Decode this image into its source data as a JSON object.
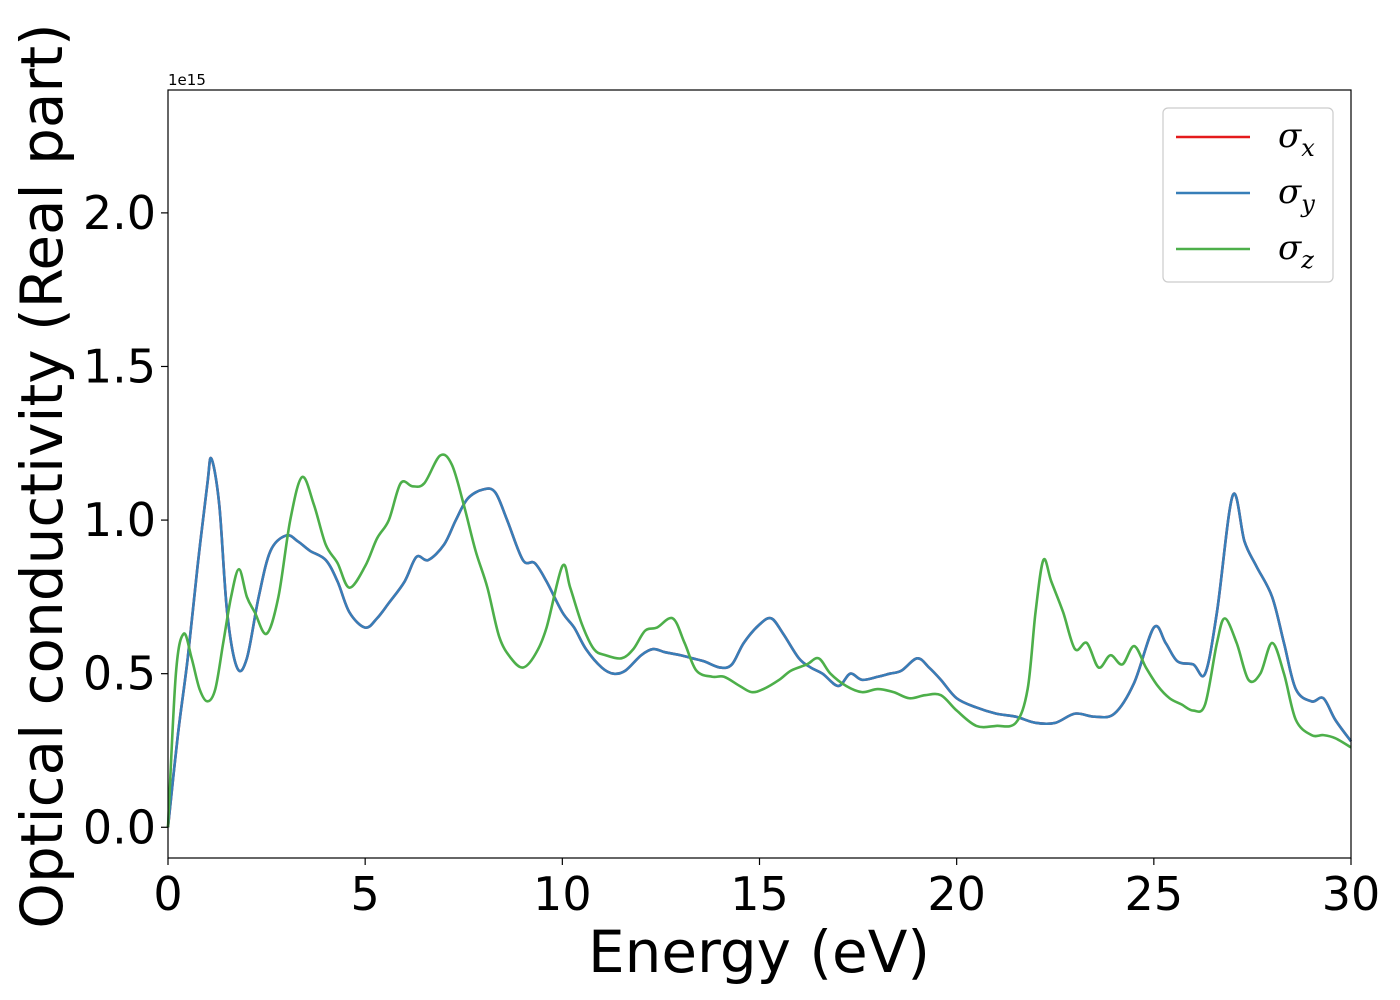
{
  "chart_data": {
    "type": "line",
    "xlabel": "Energy (eV)",
    "ylabel": "Optical conductivity (Real part)",
    "y_offset_label": "1e15",
    "xlim": [
      0,
      30
    ],
    "ylim": [
      -0.1,
      2.4
    ],
    "x_ticks": [
      0,
      5,
      10,
      15,
      20,
      25,
      30
    ],
    "x_tick_labels": [
      "0",
      "5",
      "10",
      "15",
      "20",
      "25",
      "30"
    ],
    "y_ticks": [
      0.0,
      0.5,
      1.0,
      1.5,
      2.0
    ],
    "y_tick_labels": [
      "0.0",
      "0.5",
      "1.0",
      "1.5",
      "2.0"
    ],
    "grid": false,
    "legend_position": "top-right",
    "series": [
      {
        "name": "x",
        "legend_symbol": "σ",
        "color": "#e41a1c",
        "x": [
          0,
          0.25,
          0.5,
          0.75,
          1.0,
          1.1,
          1.3,
          1.5,
          1.75,
          2.0,
          2.3,
          2.6,
          3.0,
          3.3,
          3.6,
          4.0,
          4.3,
          4.6,
          5.0,
          5.3,
          5.6,
          6.0,
          6.3,
          6.6,
          7.0,
          7.3,
          7.6,
          8.0,
          8.3,
          8.6,
          9.0,
          9.3,
          9.6,
          10.0,
          10.3,
          10.6,
          11.0,
          11.3,
          11.6,
          12.0,
          12.3,
          12.6,
          13.0,
          13.3,
          13.6,
          14.0,
          14.3,
          14.6,
          15.0,
          15.3,
          15.6,
          16.0,
          16.3,
          16.6,
          17.0,
          17.3,
          17.6,
          18.0,
          18.3,
          18.6,
          19.0,
          19.3,
          19.6,
          20.0,
          20.5,
          21.0,
          21.5,
          22.0,
          22.5,
          23.0,
          23.5,
          24.0,
          24.5,
          25.0,
          25.3,
          25.6,
          26.0,
          26.3,
          26.6,
          27.0,
          27.3,
          27.6,
          28.0,
          28.3,
          28.6,
          29.0,
          29.3,
          29.6,
          30.0
        ],
        "values": [
          0.0,
          0.3,
          0.55,
          0.85,
          1.12,
          1.2,
          1.05,
          0.7,
          0.52,
          0.55,
          0.75,
          0.9,
          0.95,
          0.93,
          0.9,
          0.87,
          0.8,
          0.7,
          0.65,
          0.68,
          0.73,
          0.8,
          0.88,
          0.87,
          0.92,
          1.0,
          1.07,
          1.1,
          1.09,
          1.0,
          0.87,
          0.86,
          0.8,
          0.7,
          0.65,
          0.58,
          0.52,
          0.5,
          0.51,
          0.56,
          0.58,
          0.57,
          0.56,
          0.55,
          0.54,
          0.52,
          0.53,
          0.6,
          0.66,
          0.68,
          0.63,
          0.55,
          0.52,
          0.5,
          0.46,
          0.5,
          0.48,
          0.49,
          0.5,
          0.51,
          0.55,
          0.52,
          0.48,
          0.42,
          0.39,
          0.37,
          0.36,
          0.34,
          0.34,
          0.37,
          0.36,
          0.37,
          0.47,
          0.65,
          0.6,
          0.54,
          0.53,
          0.5,
          0.7,
          1.08,
          0.93,
          0.85,
          0.75,
          0.6,
          0.45,
          0.41,
          0.42,
          0.35,
          0.28
        ]
      },
      {
        "name": "y",
        "legend_symbol": "σ",
        "color": "#377eb8",
        "x": [
          0,
          0.25,
          0.5,
          0.75,
          1.0,
          1.1,
          1.3,
          1.5,
          1.75,
          2.0,
          2.3,
          2.6,
          3.0,
          3.3,
          3.6,
          4.0,
          4.3,
          4.6,
          5.0,
          5.3,
          5.6,
          6.0,
          6.3,
          6.6,
          7.0,
          7.3,
          7.6,
          8.0,
          8.3,
          8.6,
          9.0,
          9.3,
          9.6,
          10.0,
          10.3,
          10.6,
          11.0,
          11.3,
          11.6,
          12.0,
          12.3,
          12.6,
          13.0,
          13.3,
          13.6,
          14.0,
          14.3,
          14.6,
          15.0,
          15.3,
          15.6,
          16.0,
          16.3,
          16.6,
          17.0,
          17.3,
          17.6,
          18.0,
          18.3,
          18.6,
          19.0,
          19.3,
          19.6,
          20.0,
          20.5,
          21.0,
          21.5,
          22.0,
          22.5,
          23.0,
          23.5,
          24.0,
          24.5,
          25.0,
          25.3,
          25.6,
          26.0,
          26.3,
          26.6,
          27.0,
          27.3,
          27.6,
          28.0,
          28.3,
          28.6,
          29.0,
          29.3,
          29.6,
          30.0
        ],
        "values": [
          0.0,
          0.3,
          0.55,
          0.85,
          1.12,
          1.2,
          1.05,
          0.7,
          0.52,
          0.55,
          0.75,
          0.9,
          0.95,
          0.93,
          0.9,
          0.87,
          0.8,
          0.7,
          0.65,
          0.68,
          0.73,
          0.8,
          0.88,
          0.87,
          0.92,
          1.0,
          1.07,
          1.1,
          1.09,
          1.0,
          0.87,
          0.86,
          0.8,
          0.7,
          0.65,
          0.58,
          0.52,
          0.5,
          0.51,
          0.56,
          0.58,
          0.57,
          0.56,
          0.55,
          0.54,
          0.52,
          0.53,
          0.6,
          0.66,
          0.68,
          0.63,
          0.55,
          0.52,
          0.5,
          0.46,
          0.5,
          0.48,
          0.49,
          0.5,
          0.51,
          0.55,
          0.52,
          0.48,
          0.42,
          0.39,
          0.37,
          0.36,
          0.34,
          0.34,
          0.37,
          0.36,
          0.37,
          0.47,
          0.65,
          0.6,
          0.54,
          0.53,
          0.5,
          0.7,
          1.08,
          0.93,
          0.85,
          0.75,
          0.6,
          0.45,
          0.41,
          0.42,
          0.35,
          0.28
        ]
      },
      {
        "name": "z",
        "legend_symbol": "σ",
        "color": "#4daf4a",
        "x": [
          0,
          0.2,
          0.4,
          0.6,
          0.8,
          1.0,
          1.2,
          1.4,
          1.6,
          1.8,
          2.0,
          2.2,
          2.5,
          2.8,
          3.1,
          3.4,
          3.7,
          4.0,
          4.3,
          4.6,
          5.0,
          5.3,
          5.6,
          5.9,
          6.2,
          6.5,
          6.9,
          7.2,
          7.5,
          7.8,
          8.1,
          8.4,
          8.7,
          9.0,
          9.3,
          9.6,
          10.0,
          10.2,
          10.5,
          10.8,
          11.1,
          11.5,
          11.8,
          12.1,
          12.4,
          12.8,
          13.1,
          13.4,
          13.8,
          14.1,
          14.5,
          14.8,
          15.1,
          15.5,
          15.8,
          16.2,
          16.5,
          16.8,
          17.2,
          17.6,
          18.0,
          18.4,
          18.8,
          19.2,
          19.6,
          20.0,
          20.5,
          21.0,
          21.5,
          21.8,
          22.0,
          22.2,
          22.4,
          22.7,
          23.0,
          23.3,
          23.6,
          23.9,
          24.2,
          24.5,
          24.8,
          25.1,
          25.4,
          25.7,
          26.0,
          26.3,
          26.6,
          26.8,
          27.1,
          27.4,
          27.7,
          28.0,
          28.3,
          28.6,
          29.0,
          29.3,
          29.6,
          30.0
        ],
        "values": [
          0.0,
          0.5,
          0.63,
          0.55,
          0.45,
          0.41,
          0.45,
          0.6,
          0.75,
          0.84,
          0.75,
          0.7,
          0.63,
          0.75,
          1.0,
          1.14,
          1.05,
          0.92,
          0.86,
          0.78,
          0.85,
          0.94,
          1.0,
          1.12,
          1.11,
          1.12,
          1.21,
          1.18,
          1.05,
          0.9,
          0.78,
          0.62,
          0.55,
          0.52,
          0.56,
          0.65,
          0.85,
          0.78,
          0.66,
          0.58,
          0.56,
          0.55,
          0.58,
          0.64,
          0.65,
          0.68,
          0.6,
          0.51,
          0.49,
          0.49,
          0.46,
          0.44,
          0.45,
          0.48,
          0.51,
          0.53,
          0.55,
          0.5,
          0.46,
          0.44,
          0.45,
          0.44,
          0.42,
          0.43,
          0.43,
          0.38,
          0.33,
          0.33,
          0.34,
          0.45,
          0.7,
          0.87,
          0.8,
          0.7,
          0.58,
          0.6,
          0.52,
          0.56,
          0.53,
          0.59,
          0.52,
          0.46,
          0.42,
          0.4,
          0.38,
          0.4,
          0.6,
          0.68,
          0.6,
          0.48,
          0.5,
          0.6,
          0.5,
          0.35,
          0.3,
          0.3,
          0.29,
          0.26
        ]
      }
    ]
  }
}
